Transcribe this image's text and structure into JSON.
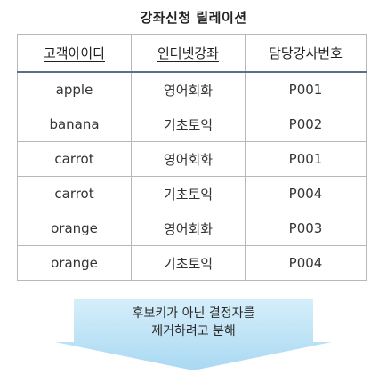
{
  "title": "강좌신청 릴레이션",
  "table": {
    "headers": [
      "고객아이디",
      "인터넷강좌",
      "담당강사번호"
    ],
    "rows": [
      [
        "apple",
        "영어회화",
        "P001"
      ],
      [
        "banana",
        "기초토익",
        "P002"
      ],
      [
        "carrot",
        "영어회화",
        "P001"
      ],
      [
        "carrot",
        "기초토익",
        "P004"
      ],
      [
        "orange",
        "영어회화",
        "P003"
      ],
      [
        "orange",
        "기초토익",
        "P004"
      ]
    ]
  },
  "note": {
    "line1": "후보키가 아닌 결정자를",
    "line2": "제거하려고 분해"
  },
  "colors": {
    "header_rule": "#5a6f8c",
    "border": "#b8b8b8",
    "arrow_top": "#d6eefa",
    "arrow_bottom": "#a9d9f2"
  }
}
